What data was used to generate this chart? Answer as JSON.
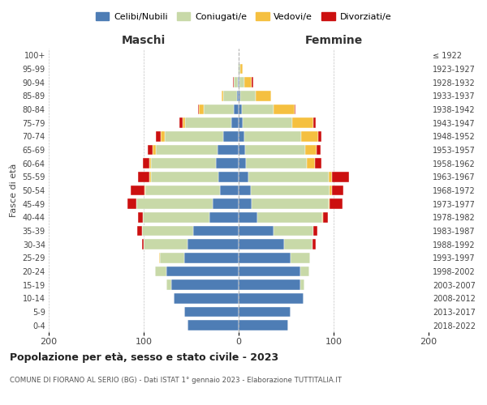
{
  "age_groups": [
    "0-4",
    "5-9",
    "10-14",
    "15-19",
    "20-24",
    "25-29",
    "30-34",
    "35-39",
    "40-44",
    "45-49",
    "50-54",
    "55-59",
    "60-64",
    "65-69",
    "70-74",
    "75-79",
    "80-84",
    "85-89",
    "90-94",
    "95-99",
    "100+"
  ],
  "birth_years": [
    "2018-2022",
    "2013-2017",
    "2008-2012",
    "2003-2007",
    "1998-2002",
    "1993-1997",
    "1988-1992",
    "1983-1987",
    "1978-1982",
    "1973-1977",
    "1968-1972",
    "1963-1967",
    "1958-1962",
    "1953-1957",
    "1948-1952",
    "1943-1947",
    "1938-1942",
    "1933-1937",
    "1928-1932",
    "1923-1927",
    "≤ 1922"
  ],
  "colors": {
    "celibe": "#4e7db5",
    "coniugato": "#c8d9a8",
    "vedovo": "#f5c040",
    "divorziato": "#cc1010"
  },
  "maschi": {
    "celibe": [
      54,
      57,
      68,
      71,
      76,
      57,
      54,
      48,
      31,
      27,
      20,
      21,
      24,
      22,
      16,
      8,
      5,
      2,
      1,
      0,
      0
    ],
    "coniugato": [
      0,
      0,
      0,
      5,
      12,
      26,
      46,
      54,
      70,
      81,
      78,
      71,
      68,
      65,
      62,
      48,
      32,
      14,
      4,
      1,
      0
    ],
    "vedovo": [
      0,
      0,
      0,
      0,
      0,
      1,
      0,
      0,
      0,
      0,
      1,
      2,
      2,
      4,
      4,
      3,
      5,
      2,
      0,
      0,
      0
    ],
    "divorziato": [
      0,
      0,
      0,
      0,
      0,
      0,
      2,
      5,
      5,
      9,
      15,
      12,
      7,
      5,
      5,
      3,
      1,
      0,
      1,
      0,
      0
    ]
  },
  "femmine": {
    "nubile": [
      52,
      55,
      68,
      65,
      65,
      55,
      48,
      37,
      20,
      14,
      13,
      10,
      8,
      7,
      6,
      4,
      3,
      2,
      1,
      0,
      0
    ],
    "coniugata": [
      0,
      0,
      0,
      4,
      9,
      20,
      30,
      42,
      68,
      81,
      83,
      85,
      64,
      63,
      60,
      52,
      34,
      16,
      5,
      2,
      0
    ],
    "vedova": [
      0,
      0,
      0,
      0,
      0,
      0,
      0,
      0,
      1,
      1,
      2,
      3,
      8,
      12,
      18,
      23,
      22,
      16,
      8,
      2,
      0
    ],
    "divorziata": [
      0,
      0,
      0,
      0,
      0,
      0,
      3,
      4,
      5,
      13,
      12,
      18,
      7,
      4,
      3,
      2,
      1,
      0,
      1,
      0,
      0
    ]
  },
  "xlim": 200,
  "xticks": [
    -200,
    -100,
    0,
    100,
    200
  ],
  "xticklabels": [
    "200",
    "100",
    "0",
    "100",
    "200"
  ],
  "title": "Popolazione per età, sesso e stato civile - 2023",
  "subtitle": "COMUNE DI FIORANO AL SERIO (BG) - Dati ISTAT 1° gennaio 2023 - Elaborazione TUTTITALIA.IT",
  "ylabel_left": "Fasce di età",
  "maschi_label": "Maschi",
  "femmine_label": "Femmine",
  "legend_labels": [
    "Celibi/Nubili",
    "Coniugati/e",
    "Vedovi/e",
    "Divorziati/e"
  ],
  "background_color": "#ffffff"
}
